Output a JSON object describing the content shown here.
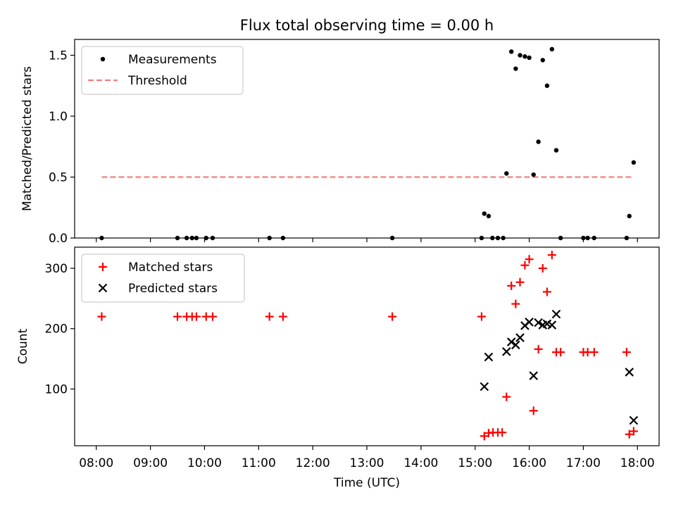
{
  "title": "Flux total observing time = 0.00 h",
  "chart_data": [
    {
      "type": "scatter",
      "ylabel": "Matched/Predicted stars",
      "xlabel": "",
      "x_unit": "hours UTC",
      "xlim": [
        7.6,
        18.4
      ],
      "ylim": [
        0,
        1.63
      ],
      "yticks": [
        0.0,
        0.5,
        1.0,
        1.5
      ],
      "ytick_labels": [
        "0.0",
        "0.5",
        "1.0",
        "1.5"
      ],
      "legend_position": "upper-left",
      "threshold": {
        "name": "Threshold",
        "value": 0.5,
        "x_range": [
          8.1,
          17.93
        ],
        "color": "#f08080",
        "style": "dashed"
      },
      "series": [
        {
          "name": "Measurements",
          "marker": "dot",
          "color": "#000000",
          "points": [
            [
              8.1,
              0
            ],
            [
              9.5,
              0
            ],
            [
              9.67,
              0
            ],
            [
              9.77,
              0
            ],
            [
              9.85,
              0
            ],
            [
              10.03,
              0
            ],
            [
              10.15,
              0
            ],
            [
              11.2,
              0
            ],
            [
              11.45,
              0
            ],
            [
              13.47,
              0
            ],
            [
              15.12,
              0
            ],
            [
              15.32,
              0
            ],
            [
              15.42,
              0
            ],
            [
              15.52,
              0
            ],
            [
              15.17,
              0.2
            ],
            [
              15.25,
              0.18
            ],
            [
              15.58,
              0.53
            ],
            [
              15.67,
              1.53
            ],
            [
              15.75,
              1.39
            ],
            [
              15.83,
              1.5
            ],
            [
              15.92,
              1.49
            ],
            [
              16.0,
              1.48
            ],
            [
              16.08,
              0.52
            ],
            [
              16.17,
              0.79
            ],
            [
              16.25,
              1.46
            ],
            [
              16.33,
              1.25
            ],
            [
              16.42,
              1.55
            ],
            [
              16.5,
              0.72
            ],
            [
              16.58,
              0
            ],
            [
              17.0,
              0
            ],
            [
              17.08,
              0
            ],
            [
              17.2,
              0
            ],
            [
              17.8,
              0
            ],
            [
              17.85,
              0.18
            ],
            [
              17.93,
              0.62
            ]
          ]
        }
      ]
    },
    {
      "type": "scatter",
      "ylabel": "Count",
      "xlabel": "Time (UTC)",
      "x_unit": "hours UTC",
      "xlim": [
        7.6,
        18.4
      ],
      "ylim": [
        6,
        335
      ],
      "yticks": [
        100,
        200,
        300
      ],
      "ytick_labels": [
        "100",
        "200",
        "300"
      ],
      "xticks": [
        8,
        9,
        10,
        11,
        12,
        13,
        14,
        15,
        16,
        17,
        18
      ],
      "xtick_labels": [
        "08:00",
        "09:00",
        "10:00",
        "11:00",
        "12:00",
        "13:00",
        "14:00",
        "15:00",
        "16:00",
        "17:00",
        "18:00"
      ],
      "legend_position": "upper-left",
      "series": [
        {
          "name": "Matched stars",
          "marker": "plus",
          "color": "#ff0000",
          "points": [
            [
              8.1,
              220
            ],
            [
              9.5,
              220
            ],
            [
              9.67,
              220
            ],
            [
              9.77,
              220
            ],
            [
              9.85,
              220
            ],
            [
              10.03,
              220
            ],
            [
              10.15,
              220
            ],
            [
              11.2,
              220
            ],
            [
              11.45,
              220
            ],
            [
              13.47,
              220
            ],
            [
              15.12,
              220
            ],
            [
              15.17,
              22
            ],
            [
              15.25,
              27
            ],
            [
              15.33,
              28
            ],
            [
              15.42,
              28
            ],
            [
              15.5,
              28
            ],
            [
              15.58,
              87
            ],
            [
              15.67,
              271
            ],
            [
              15.75,
              241
            ],
            [
              15.83,
              277
            ],
            [
              15.92,
              305
            ],
            [
              16.0,
              315
            ],
            [
              16.08,
              64
            ],
            [
              16.17,
              166
            ],
            [
              16.25,
              300
            ],
            [
              16.33,
              261
            ],
            [
              16.42,
              322
            ],
            [
              16.5,
              161
            ],
            [
              16.58,
              161
            ],
            [
              17.0,
              161
            ],
            [
              17.08,
              161
            ],
            [
              17.2,
              161
            ],
            [
              17.8,
              161
            ],
            [
              17.85,
              25
            ],
            [
              17.93,
              30
            ]
          ]
        },
        {
          "name": "Predicted stars",
          "marker": "x",
          "color": "#000000",
          "points": [
            [
              15.17,
              104
            ],
            [
              15.25,
              153
            ],
            [
              15.58,
              162
            ],
            [
              15.67,
              178
            ],
            [
              15.75,
              173
            ],
            [
              15.83,
              185
            ],
            [
              15.92,
              205
            ],
            [
              16.0,
              211
            ],
            [
              16.08,
              122
            ],
            [
              16.17,
              210
            ],
            [
              16.25,
              206
            ],
            [
              16.33,
              208
            ],
            [
              16.42,
              206
            ],
            [
              16.5,
              224
            ],
            [
              17.85,
              128
            ],
            [
              17.93,
              48
            ]
          ]
        }
      ]
    }
  ]
}
